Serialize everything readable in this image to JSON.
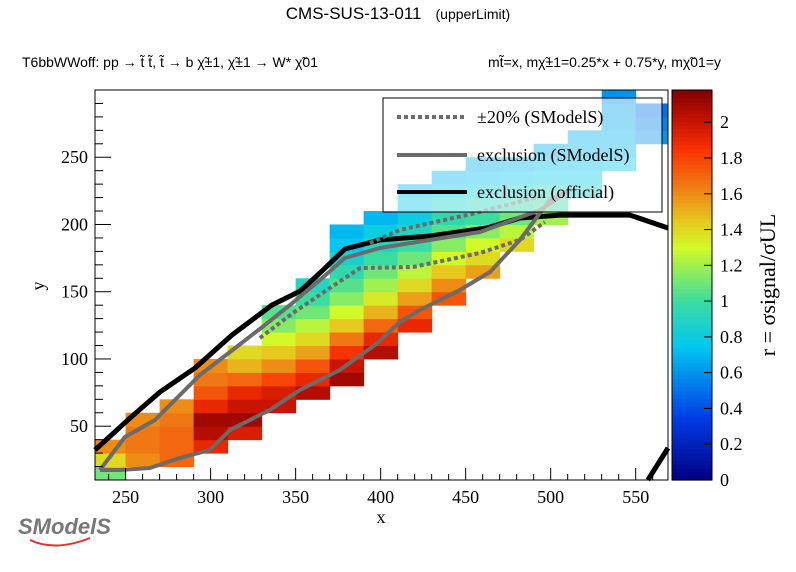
{
  "chart_data": {
    "type": "heatmap",
    "title": "CMS-SUS-13-011",
    "title_suffix": "(upperLimit)",
    "subtitle_left": "T6bbWWoff: pp → t̃ t̃, t̃ → b χ̃±1, χ̃±1 → W* χ̃01",
    "subtitle_right": "mt̃=x, mχ̃±1=0.25*x + 0.75*y, mχ̃01=y",
    "xlabel": "x",
    "ylabel": "y",
    "zlabel": "r = σsignal/σUL",
    "xlim": [
      232,
      569
    ],
    "ylim": [
      10,
      300
    ],
    "zlim": [
      0,
      2.18
    ],
    "xticks": [
      250,
      300,
      350,
      400,
      450,
      500,
      550
    ],
    "yticks": [
      50,
      100,
      150,
      200,
      250
    ],
    "zticks": [
      0,
      0.2,
      0.4,
      0.6,
      0.8,
      1,
      1.2,
      1.4,
      1.6,
      1.8,
      2
    ],
    "cell_size": {
      "dx": 20,
      "dy": 10
    },
    "columns": [
      {
        "x": 240,
        "ymin": 10,
        "values": [
          1.1,
          1.4,
          1.6
        ]
      },
      {
        "x": 260,
        "ymin": 20,
        "values": [
          1.6,
          1.65,
          1.65,
          1.6
        ]
      },
      {
        "x": 280,
        "ymin": 20,
        "values": [
          1.7,
          1.7,
          1.7,
          1.65,
          1.6
        ]
      },
      {
        "x": 300,
        "ymin": 30,
        "values": [
          1.9,
          2.05,
          2.1,
          1.9,
          1.75,
          1.65,
          1.6
        ]
      },
      {
        "x": 320,
        "ymin": 40,
        "values": [
          1.95,
          2.1,
          2.0,
          1.9,
          1.7,
          1.5,
          1.4
        ]
      },
      {
        "x": 340,
        "ymin": 60,
        "values": [
          2.0,
          1.95,
          1.8,
          1.6,
          1.45,
          1.3,
          1.15,
          1.05
        ]
      },
      {
        "x": 360,
        "ymin": 70,
        "values": [
          2.05,
          1.9,
          1.75,
          1.55,
          1.4,
          1.25,
          1.1,
          1.0,
          0.9
        ]
      },
      {
        "x": 380,
        "ymin": 80,
        "values": [
          2.1,
          2.0,
          1.85,
          1.65,
          1.45,
          1.3,
          1.15,
          1.05,
          0.95,
          0.85,
          0.75,
          0.7
        ]
      },
      {
        "x": 400,
        "ymin": 100,
        "values": [
          2.05,
          1.9,
          1.7,
          1.5,
          1.35,
          1.2,
          1.1,
          1.0,
          0.9,
          0.8,
          0.7
        ]
      },
      {
        "x": 420,
        "ymin": 120,
        "values": [
          1.9,
          1.75,
          1.55,
          1.4,
          1.25,
          1.1,
          1.0,
          0.9,
          0.8,
          0.75,
          0.7
        ]
      },
      {
        "x": 440,
        "ymin": 140,
        "values": [
          1.75,
          1.6,
          1.45,
          1.3,
          1.15,
          1.05,
          0.95,
          0.85,
          0.75,
          0.7
        ]
      },
      {
        "x": 460,
        "ymin": 160,
        "values": [
          1.55,
          1.4,
          1.3,
          1.15,
          1.0,
          0.9,
          0.8,
          0.72,
          0.68
        ]
      },
      {
        "x": 480,
        "ymin": 180,
        "values": [
          1.4,
          1.25,
          1.1,
          0.95,
          0.85,
          0.75,
          0.7
        ]
      },
      {
        "x": 500,
        "ymin": 200,
        "values": [
          1.2,
          1.0,
          0.9,
          0.78,
          0.72,
          0.68
        ]
      },
      {
        "x": 520,
        "ymin": 220,
        "values": [
          0.85,
          0.78,
          0.72,
          0.7,
          0.68
        ]
      },
      {
        "x": 540,
        "ymin": 240,
        "values": [
          0.75,
          0.7,
          0.68,
          0.66,
          0.65,
          0.6
        ]
      },
      {
        "x": 560,
        "ymin": 260,
        "values": [
          0.6,
          0.55,
          0.5
        ]
      }
    ],
    "series": [
      {
        "name": "exclusion (official)",
        "color": "#000000",
        "style": "solid",
        "points": [
          [
            232,
            32.3
          ],
          [
            252.6,
            56.1
          ],
          [
            270.2,
            75.4
          ],
          [
            290.8,
            93.3
          ],
          [
            312.6,
            117.8
          ],
          [
            336.1,
            140.1
          ],
          [
            352.6,
            150.5
          ],
          [
            364.3,
            163.9
          ],
          [
            379,
            181.8
          ],
          [
            399.6,
            188.5
          ],
          [
            429,
            191.4
          ],
          [
            462.5,
            197.4
          ],
          [
            481.9,
            204.8
          ],
          [
            505.4,
            207
          ],
          [
            546.6,
            207
          ],
          [
            569,
            197.4
          ]
        ]
      },
      {
        "name": "exclusion (official) segment 2",
        "color": "#000000",
        "style": "solid",
        "points": [
          [
            557.2,
            10
          ],
          [
            569,
            33.8
          ]
        ]
      },
      {
        "name": "exclusion (SModelS)",
        "color": "#6b6b6b",
        "style": "solid",
        "points": [
          [
            234.9,
            17.4
          ],
          [
            249.6,
            42
          ],
          [
            267.3,
            54.6
          ],
          [
            293.7,
            88.1
          ],
          [
            311.4,
            105.2
          ],
          [
            332,
            125.3
          ],
          [
            346.7,
            140.1
          ],
          [
            364.3,
            158.7
          ],
          [
            379,
            175.1
          ],
          [
            399.6,
            182.5
          ],
          [
            429,
            188.5
          ],
          [
            458.4,
            194.4
          ],
          [
            493.7,
            210.8
          ],
          [
            511.3,
            225.6
          ],
          [
            499.5,
            218.2
          ],
          [
            481.9,
            188.5
          ],
          [
            464.3,
            164.7
          ],
          [
            446.6,
            151.3
          ],
          [
            423.1,
            136.4
          ],
          [
            411.3,
            127.5
          ],
          [
            396.6,
            110.4
          ],
          [
            376,
            91.8
          ],
          [
            352.5,
            76.9
          ],
          [
            334.9,
            62.1
          ],
          [
            311.4,
            47.2
          ],
          [
            299.6,
            32.3
          ],
          [
            282,
            26.4
          ],
          [
            264.3,
            18.9
          ],
          [
            246.7,
            17.4
          ],
          [
            234.9,
            17.4
          ]
        ]
      },
      {
        "name": "±20% (SModelS) upper",
        "color": "#6b6b6b",
        "style": "dotted",
        "points": [
          [
            393.7,
            186.2
          ],
          [
            411.3,
            195.9
          ],
          [
            458.4,
            209.3
          ],
          [
            496.6,
            221.9
          ]
        ]
      },
      {
        "name": "±20% (SModelS) lower",
        "color": "#6b6b6b",
        "style": "dotted",
        "points": [
          [
            329,
            115.6
          ],
          [
            348.4,
            134.2
          ],
          [
            368.4,
            151.3
          ],
          [
            387.8,
            167.6
          ],
          [
            419,
            168.4
          ],
          [
            458.4,
            178.8
          ],
          [
            481.9,
            188.5
          ],
          [
            496.6,
            201.8
          ]
        ]
      }
    ],
    "legend": {
      "placement": "top-right",
      "entries": [
        "±20% (SModelS)",
        "exclusion (SModelS)",
        "exclusion (official)"
      ]
    }
  },
  "logo": "SModelS"
}
